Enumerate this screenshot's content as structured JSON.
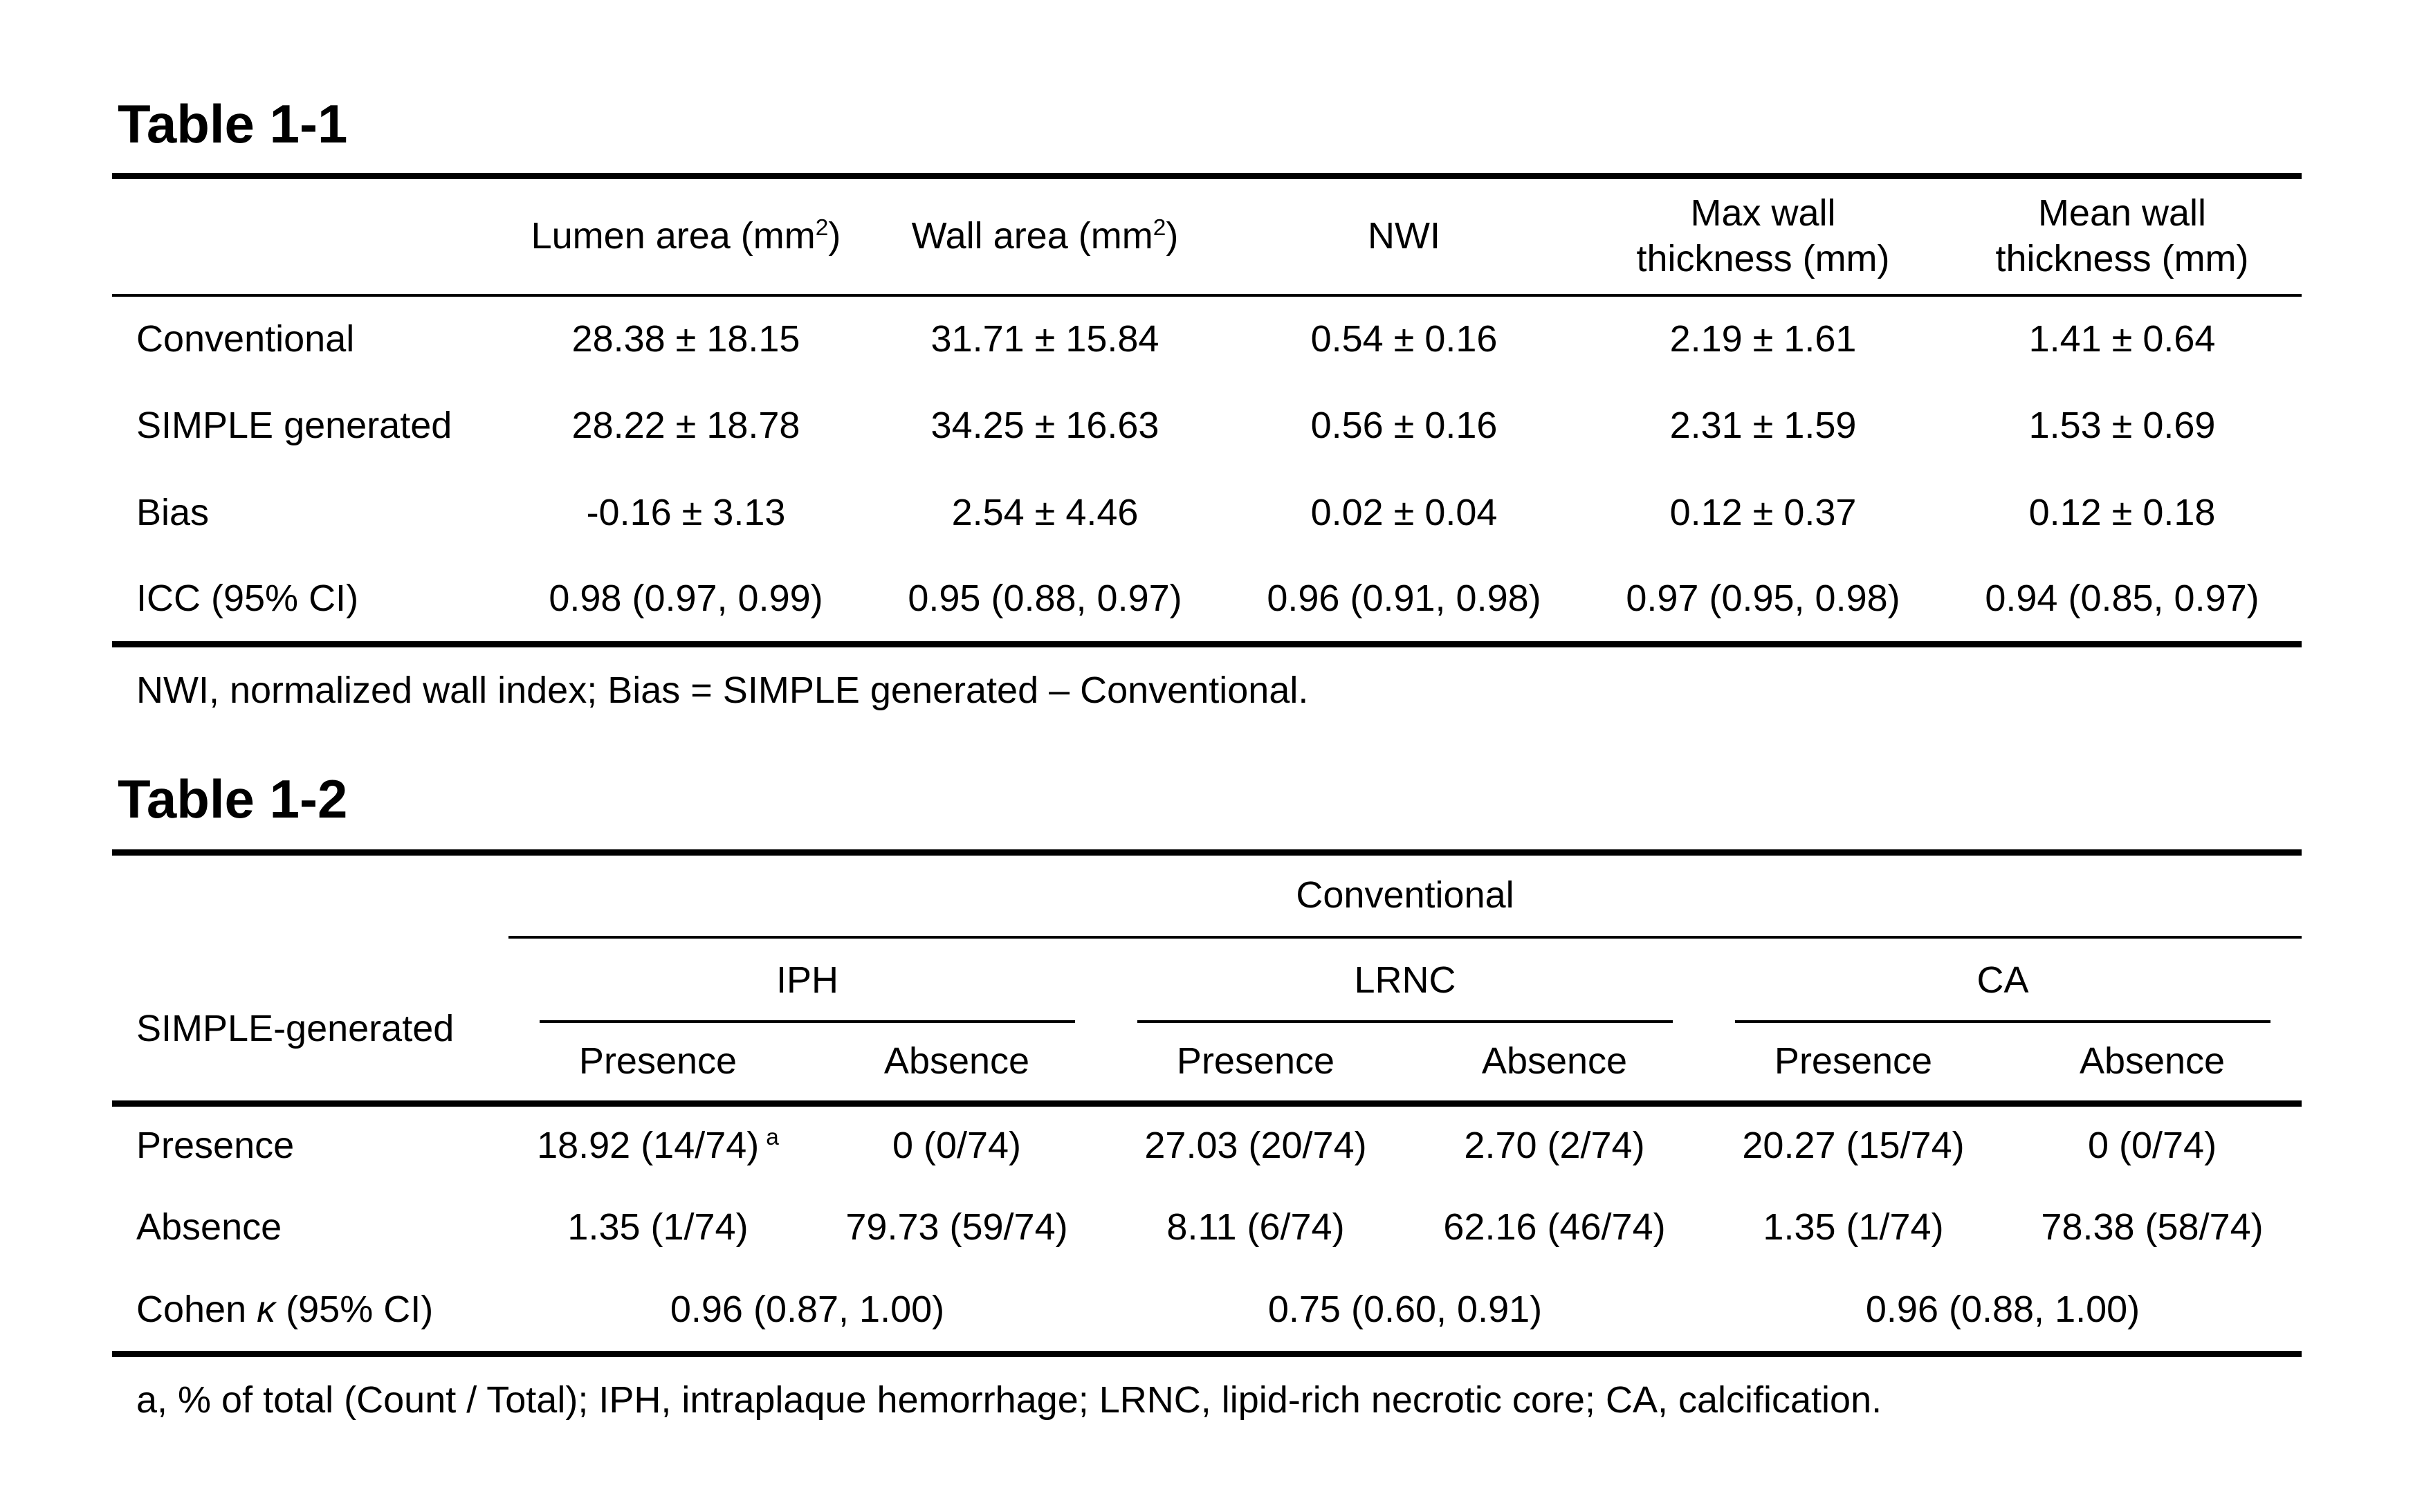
{
  "page": {
    "background_color": "#ffffff",
    "text_color": "#000000",
    "rule_color": "#000000"
  },
  "table1": {
    "title": "Table 1-1",
    "columns": [
      {
        "pre": "Lumen area (mm",
        "sup": "2",
        "post": ")"
      },
      {
        "pre": "Wall area (mm",
        "sup": "2",
        "post": ")"
      },
      {
        "line1": "NWI"
      },
      {
        "line1": "Max wall",
        "line2": "thickness (mm)"
      },
      {
        "line1": "Mean wall",
        "line2": "thickness (mm)"
      }
    ],
    "rows": [
      {
        "label": "Conventional",
        "values": [
          "28.38 ± 18.15",
          "31.71 ± 15.84",
          "0.54 ± 0.16",
          "2.19 ± 1.61",
          "1.41 ± 0.64"
        ]
      },
      {
        "label": "SIMPLE generated",
        "values": [
          "28.22 ± 18.78",
          "34.25 ± 16.63",
          "0.56 ± 0.16",
          "2.31 ± 1.59",
          "1.53 ± 0.69"
        ]
      },
      {
        "label": "Bias",
        "values": [
          "-0.16 ± 3.13",
          "2.54 ± 4.46",
          "0.02 ± 0.04",
          "0.12 ± 0.37",
          "0.12 ± 0.18"
        ]
      },
      {
        "label": "ICC (95% CI)",
        "values": [
          "0.98 (0.97, 0.99)",
          "0.95 (0.88, 0.97)",
          "0.96 (0.91, 0.98)",
          "0.97 (0.95, 0.98)",
          "0.94 (0.85, 0.97)"
        ]
      }
    ],
    "footnote": "NWI, normalized wall index; Bias = SIMPLE generated – Conventional."
  },
  "table2": {
    "title": "Table 1-2",
    "row_header": "SIMPLE-generated",
    "span_header": "Conventional",
    "groups": [
      {
        "label": "IPH"
      },
      {
        "label": "LRNC"
      },
      {
        "label": "CA"
      }
    ],
    "sub_headers": [
      "Presence",
      "Absence",
      "Presence",
      "Absence",
      "Presence",
      "Absence"
    ],
    "rows": [
      {
        "label": "Presence",
        "values": [
          {
            "text": "18.92 (14/74)",
            "sup": "a"
          },
          {
            "text": "0 (0/74)"
          },
          {
            "text": "27.03 (20/74)"
          },
          {
            "text": "2.70 (2/74)"
          },
          {
            "text": "20.27 (15/74)"
          },
          {
            "text": "0 (0/74)"
          }
        ]
      },
      {
        "label": "Absence",
        "values": [
          {
            "text": "1.35 (1/74)"
          },
          {
            "text": "79.73 (59/74)"
          },
          {
            "text": "8.11 (6/74)"
          },
          {
            "text": "62.16 (46/74)"
          },
          {
            "text": "1.35 (1/74)"
          },
          {
            "text": "78.38 (58/74)"
          }
        ]
      }
    ],
    "kappa_row": {
      "label_pre": "Cohen ",
      "label_kappa": "κ",
      "label_post": " (95% CI)",
      "values": [
        "0.96 (0.87, 1.00)",
        "0.75 (0.60, 0.91)",
        "0.96 (0.88, 1.00)"
      ]
    },
    "footnote": "a, % of total (Count / Total); IPH, intraplaque hemorrhage; LRNC, lipid-rich necrotic core; CA, calcification."
  }
}
